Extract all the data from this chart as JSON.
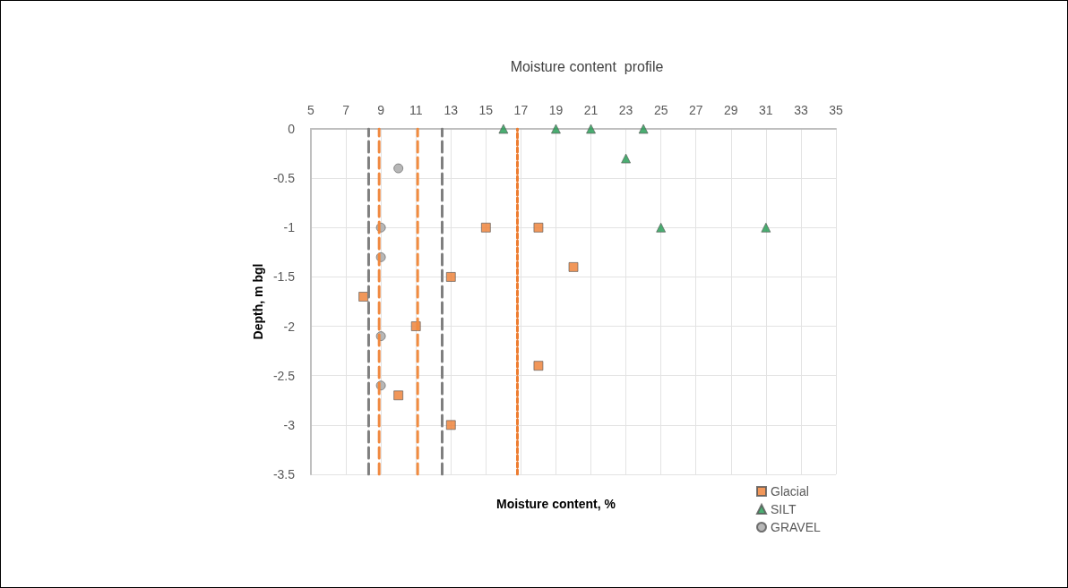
{
  "chart_data": {
    "type": "scatter",
    "title": "Moisture content  profile",
    "xlabel": "Moisture content, %",
    "ylabel": "Depth, m bgl",
    "xlim": [
      5,
      35
    ],
    "xticks": [
      5,
      7,
      9,
      11,
      13,
      15,
      17,
      19,
      21,
      23,
      25,
      27,
      29,
      31,
      33,
      35
    ],
    "ylim": [
      -3.5,
      0
    ],
    "yticks": [
      0,
      -0.5,
      -1,
      -1.5,
      -2,
      -2.5,
      -3,
      -3.5
    ],
    "grid": true,
    "legend": "bottom right",
    "series": [
      {
        "name": "Glacial",
        "color": "#ed7d31",
        "marker": "square",
        "x": [
          15,
          18,
          20,
          13,
          8,
          11,
          18,
          10,
          13
        ],
        "values": [
          -1,
          -1,
          -1.4,
          -1.5,
          -1.7,
          -2,
          -2.4,
          -2.7,
          -3
        ]
      },
      {
        "name": "SILT",
        "color": "#1e9a4f",
        "marker": "triangle",
        "x": [
          16,
          19,
          21,
          24,
          23,
          25,
          31
        ],
        "values": [
          0,
          0,
          0,
          0,
          -0.3,
          -1,
          -1
        ]
      },
      {
        "name": "GRAVEL",
        "color": "#a5a5a5",
        "marker": "circle",
        "x": [
          10,
          9,
          9,
          9,
          9
        ],
        "values": [
          -0.4,
          -1,
          -1.3,
          -2.1,
          -2.6
        ]
      }
    ],
    "ref_lines": [
      {
        "axis": "x",
        "value": 8.3,
        "label": null,
        "color": "#7f7f7f",
        "line_style": "dashed"
      },
      {
        "axis": "x",
        "value": 8.9,
        "label": null,
        "color": "#f0883e",
        "line_style": "dashed"
      },
      {
        "axis": "x",
        "value": 11.1,
        "label": null,
        "color": "#f28c40",
        "line_style": "dashed"
      },
      {
        "axis": "x",
        "value": 12.5,
        "label": null,
        "color": "#7f7f7f",
        "line_style": "dashed"
      },
      {
        "axis": "x",
        "value": 16.8,
        "label": null,
        "color": "#ed7d31",
        "line_style": "dotted"
      }
    ]
  }
}
